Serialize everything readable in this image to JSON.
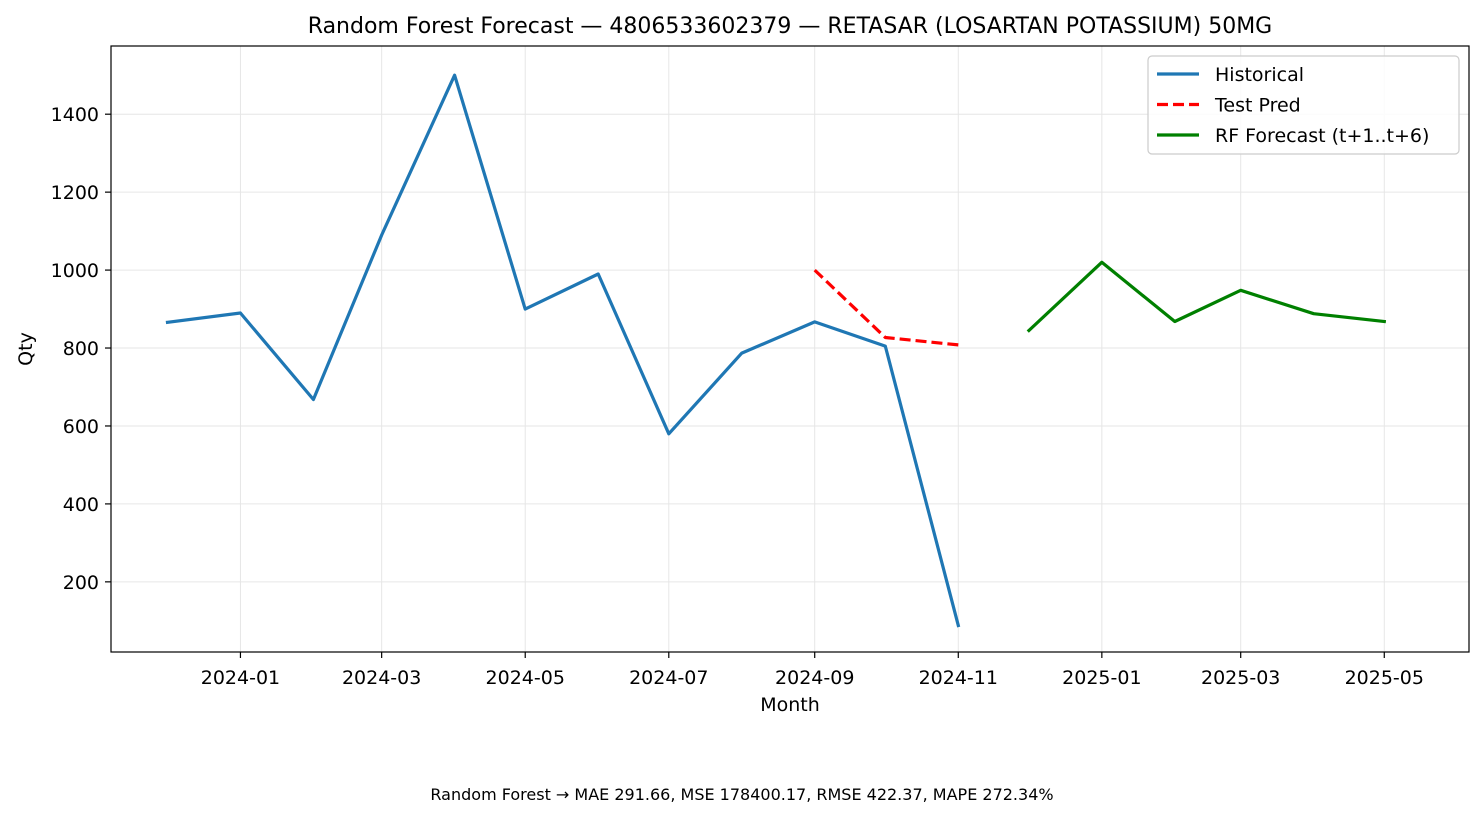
{
  "chart_data": {
    "type": "line",
    "title": "Random Forest Forecast — 4806533602379 — RETASAR (LOSARTAN POTASSIUM) 50MG",
    "xlabel": "Month",
    "ylabel": "Qty",
    "x_range": [
      "2023-11-07",
      "2025-06-06"
    ],
    "ylim": [
      20,
      1575
    ],
    "y_ticks": [
      200,
      400,
      600,
      800,
      1000,
      1200,
      1400
    ],
    "x_ticks": [
      "2024-01",
      "2024-03",
      "2024-05",
      "2024-07",
      "2024-09",
      "2024-11",
      "2025-01",
      "2025-03",
      "2025-05"
    ],
    "grid": true,
    "legend_position": "top-right",
    "series": [
      {
        "name": "Historical",
        "color": "#1f77b4",
        "style": "solid",
        "x": [
          "2023-12",
          "2024-01",
          "2024-02",
          "2024-03",
          "2024-04",
          "2024-05",
          "2024-06",
          "2024-07",
          "2024-08",
          "2024-09",
          "2024-10",
          "2024-11"
        ],
        "values": [
          866,
          890,
          668,
          1090,
          1500,
          900,
          990,
          580,
          787,
          867,
          805,
          88
        ]
      },
      {
        "name": "Test Pred",
        "color": "#ff0000",
        "style": "dashed",
        "x": [
          "2024-09",
          "2024-10",
          "2024-11"
        ],
        "values": [
          1000,
          827,
          808
        ]
      },
      {
        "name": "RF Forecast (t+1..t+6)",
        "color": "#008000",
        "style": "solid",
        "x": [
          "2024-12",
          "2025-01",
          "2025-02",
          "2025-03",
          "2025-04",
          "2025-05"
        ],
        "values": [
          845,
          1020,
          868,
          948,
          888,
          868
        ]
      }
    ],
    "footer": "Random Forest → MAE 291.66, MSE 178400.17, RMSE 422.37, MAPE 272.34%"
  }
}
